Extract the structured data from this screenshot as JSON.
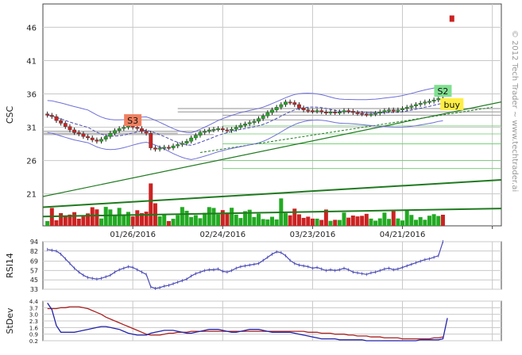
{
  "watermark": "© 2012 Tech Trader ~ www.techtrader.ai",
  "chart_data": [
    {
      "name": "price",
      "type": "candlestick",
      "ylabel": "CSC",
      "yticks": [
        21,
        26,
        31,
        36,
        41,
        46
      ],
      "ylim": [
        16.2,
        49.5
      ],
      "xlim": [
        0,
        102
      ],
      "xticks": [
        {
          "index": 20,
          "label": "01/26/2016"
        },
        {
          "index": 40,
          "label": "02/24/2016"
        },
        {
          "index": 60,
          "label": "03/23/2016"
        },
        {
          "index": 80,
          "label": "04/21/2016"
        },
        {
          "index": 100,
          "label": ""
        }
      ],
      "close": [
        32.8,
        32.6,
        32.0,
        31.6,
        31.1,
        30.6,
        30.2,
        30.0,
        29.6,
        29.4,
        29.1,
        28.9,
        29.2,
        29.6,
        30.1,
        30.5,
        30.8,
        31.0,
        31.2,
        31.0,
        30.8,
        30.4,
        30.1,
        27.9,
        27.7,
        27.9,
        28.0,
        27.9,
        28.2,
        28.4,
        28.6,
        28.9,
        29.4,
        29.8,
        30.2,
        30.4,
        30.6,
        30.7,
        30.8,
        30.6,
        30.5,
        30.7,
        31.0,
        31.3,
        31.5,
        31.7,
        31.9,
        32.3,
        32.7,
        33.2,
        33.6,
        34.0,
        34.4,
        34.8,
        34.7,
        34.4,
        33.9,
        33.6,
        33.5,
        33.4,
        33.5,
        33.3,
        33.2,
        33.3,
        33.2,
        33.3,
        33.5,
        33.4,
        33.2,
        33.1,
        33.0,
        32.9,
        33.0,
        33.1,
        33.3,
        33.5,
        33.6,
        33.5,
        33.6,
        33.8,
        34.0,
        34.2,
        34.4,
        34.6,
        34.8,
        34.9,
        35.1,
        35.3,
        34.6
      ],
      "bars_color": {
        "up": "#22aa22",
        "down": "#cc2222"
      },
      "indicator_lines": [
        {
          "name": "upper-band",
          "color": "#6f6fd8"
        },
        {
          "name": "lower-band",
          "color": "#6f6fd8"
        },
        {
          "name": "moving-average",
          "color": "#4b4bb8"
        }
      ],
      "annotations": [
        {
          "text": "S3",
          "index": 20,
          "value": 32.0,
          "color": "#f08060"
        },
        {
          "text": "S2",
          "index": 89,
          "value": 36.4,
          "color": "#80e090"
        },
        {
          "text": "buy",
          "index": 91,
          "value": 34.4,
          "color": "#ffee44"
        }
      ],
      "last_marker": {
        "index": 91,
        "value": 47.3,
        "color": "#cc2222"
      }
    },
    {
      "name": "rsi",
      "type": "line",
      "ylabel": "RSI14",
      "yticks": [
        33,
        45,
        57,
        69,
        82,
        94
      ],
      "ylim": [
        33,
        94
      ],
      "color": "#4b4bb8",
      "values": [
        84,
        83,
        82,
        78,
        72,
        66,
        60,
        55,
        51,
        48,
        47,
        46,
        47,
        49,
        51,
        55,
        58,
        60,
        62,
        61,
        58,
        55,
        52,
        36,
        34,
        35,
        37,
        38,
        40,
        42,
        44,
        46,
        50,
        53,
        55,
        57,
        58,
        58,
        59,
        56,
        55,
        57,
        60,
        62,
        63,
        64,
        65,
        66,
        70,
        74,
        78,
        81,
        80,
        76,
        70,
        66,
        64,
        63,
        62,
        60,
        61,
        59,
        57,
        58,
        57,
        58,
        60,
        58,
        55,
        54,
        53,
        52,
        54,
        55,
        57,
        59,
        60,
        58,
        59,
        61,
        63,
        65,
        67,
        69,
        71,
        72,
        74,
        76,
        94
      ]
    },
    {
      "name": "stdev",
      "type": "line",
      "ylabel": "StDev",
      "yticks": [
        0.2,
        0.9,
        1.6,
        2.3,
        3.0,
        3.7,
        4.4
      ],
      "ylim": [
        0.2,
        4.4
      ],
      "series": [
        {
          "color": "#aa2222",
          "values": [
            3.6,
            3.6,
            3.6,
            3.7,
            3.7,
            3.8,
            3.8,
            3.8,
            3.7,
            3.6,
            3.4,
            3.2,
            3.0,
            2.7,
            2.5,
            2.3,
            2.1,
            1.9,
            1.7,
            1.5,
            1.3,
            1.1,
            0.9,
            0.8,
            0.8,
            0.8,
            0.9,
            1.0,
            1.0,
            1.1,
            1.1,
            1.1,
            1.2,
            1.2,
            1.2,
            1.2,
            1.2,
            1.2,
            1.2,
            1.2,
            1.2,
            1.2,
            1.2,
            1.2,
            1.2,
            1.2,
            1.2,
            1.2,
            1.2,
            1.2,
            1.2,
            1.2,
            1.2,
            1.2,
            1.2,
            1.2,
            1.2,
            1.2,
            1.1,
            1.1,
            1.1,
            1.0,
            1.0,
            1.0,
            0.9,
            0.9,
            0.9,
            0.8,
            0.8,
            0.7,
            0.7,
            0.7,
            0.6,
            0.6,
            0.6,
            0.5,
            0.5,
            0.5,
            0.5,
            0.4,
            0.4,
            0.4,
            0.4,
            0.4,
            0.4,
            0.4,
            0.5,
            0.5,
            0.6
          ]
        },
        {
          "color": "#2222aa",
          "values": [
            4.2,
            3.5,
            1.8,
            1.1,
            1.1,
            1.1,
            1.1,
            1.2,
            1.3,
            1.4,
            1.5,
            1.6,
            1.7,
            1.7,
            1.6,
            1.5,
            1.4,
            1.2,
            1.0,
            0.9,
            0.8,
            0.8,
            0.8,
            1.0,
            1.1,
            1.2,
            1.3,
            1.3,
            1.3,
            1.2,
            1.1,
            1.0,
            1.0,
            1.1,
            1.2,
            1.3,
            1.4,
            1.4,
            1.4,
            1.3,
            1.2,
            1.1,
            1.1,
            1.2,
            1.3,
            1.4,
            1.4,
            1.4,
            1.3,
            1.2,
            1.1,
            1.1,
            1.1,
            1.1,
            1.1,
            1.0,
            0.9,
            0.8,
            0.7,
            0.6,
            0.5,
            0.4,
            0.4,
            0.4,
            0.4,
            0.3,
            0.3,
            0.3,
            0.3,
            0.3,
            0.3,
            0.2,
            0.2,
            0.2,
            0.2,
            0.2,
            0.2,
            0.2,
            0.2,
            0.2,
            0.2,
            0.2,
            0.2,
            0.3,
            0.3,
            0.3,
            0.3,
            0.3,
            0.4,
            2.6
          ]
        }
      ]
    }
  ]
}
